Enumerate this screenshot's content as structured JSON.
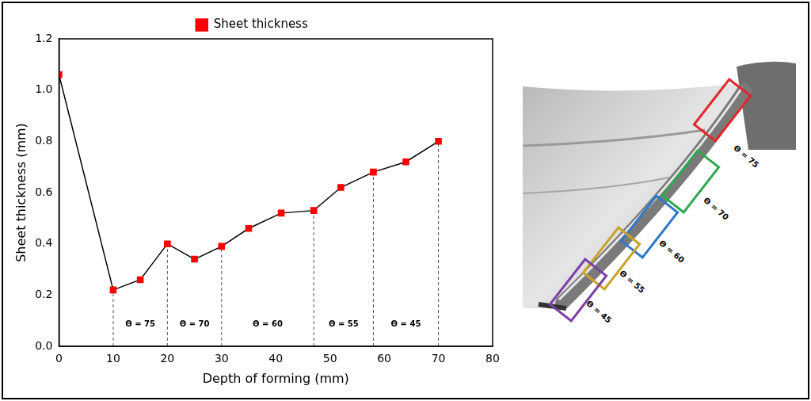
{
  "chart_data": {
    "type": "line",
    "x_label": "Depth of forming (mm)",
    "y_label": "Sheet thickness (mm)",
    "x": [
      0,
      10,
      15,
      20,
      25,
      30,
      35,
      41,
      47,
      52,
      58,
      64,
      70
    ],
    "series": [
      {
        "name": "Sheet thickness",
        "color": "#ff0000",
        "marker": "square",
        "line_style": "solid",
        "values": [
          1.06,
          0.22,
          0.26,
          0.4,
          0.34,
          0.39,
          0.46,
          0.52,
          0.53,
          0.62,
          0.68,
          0.72,
          0.8
        ]
      }
    ],
    "xlim": [
      0,
      80
    ],
    "xticks": [
      0,
      10,
      20,
      30,
      40,
      50,
      60,
      70,
      80
    ],
    "ylim": [
      0,
      1.2
    ],
    "yticks": [
      {
        "value": 0,
        "label": "0.0"
      },
      0.2,
      0.4,
      0.6,
      0.8,
      {
        "value": 1,
        "label": "1.0"
      },
      1.2
    ],
    "grid": false,
    "legend": "top",
    "annotations": {
      "guides_x": [
        10,
        20,
        30,
        47,
        58,
        70
      ],
      "regions": [
        {
          "label": "Θ = 75",
          "x": [
            10,
            20
          ]
        },
        {
          "label": "Θ = 70",
          "x": [
            20,
            30
          ]
        },
        {
          "label": "Θ = 60",
          "x": [
            30,
            47
          ]
        },
        {
          "label": "Θ = 55",
          "x": [
            47,
            58
          ]
        },
        {
          "label": "Θ = 45",
          "x": [
            58,
            70
          ]
        }
      ]
    }
  },
  "photo_panel": {
    "regions": [
      {
        "label": "Θ = 75",
        "color": "#e3262b"
      },
      {
        "label": "Θ = 70",
        "color": "#2fa84f"
      },
      {
        "label": "Θ = 60",
        "color": "#2f78c8"
      },
      {
        "label": "Θ = 55",
        "color": "#c9a227"
      },
      {
        "label": "Θ = 45",
        "color": "#7a3fa6"
      }
    ]
  }
}
